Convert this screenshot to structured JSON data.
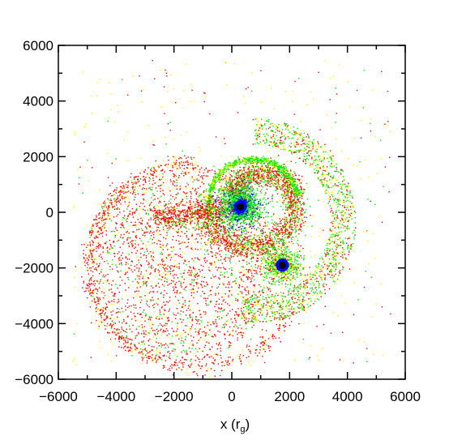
{
  "chart_data": {
    "type": "scatter",
    "title": "",
    "xlabel": "x (r",
    "xlabel_sub": "g",
    "xlabel_close": ")",
    "ylabel": "",
    "xlim": [
      -6000,
      6000
    ],
    "ylim": [
      -6000,
      6000
    ],
    "x_ticks": [
      -6000,
      -4000,
      -2000,
      0,
      2000,
      4000,
      6000
    ],
    "y_ticks": [
      -6000,
      -4000,
      -2000,
      0,
      2000,
      4000,
      6000
    ],
    "x_tick_labels": [
      "−6000",
      "−4000",
      "−2000",
      "0",
      "2000",
      "4000",
      "6000"
    ],
    "y_tick_labels": [
      "−6000",
      "−4000",
      "−2000",
      "0",
      "2000",
      "4000",
      "6000"
    ],
    "grid": false,
    "black_holes": [
      {
        "x": 300,
        "y": 200
      },
      {
        "x": 1750,
        "y": -1900
      }
    ],
    "point_colors": {
      "red": "#ff0000",
      "green": "#00ee00",
      "yellow": "#ffff00",
      "blue": "#0000ff",
      "black": "#000000"
    }
  }
}
